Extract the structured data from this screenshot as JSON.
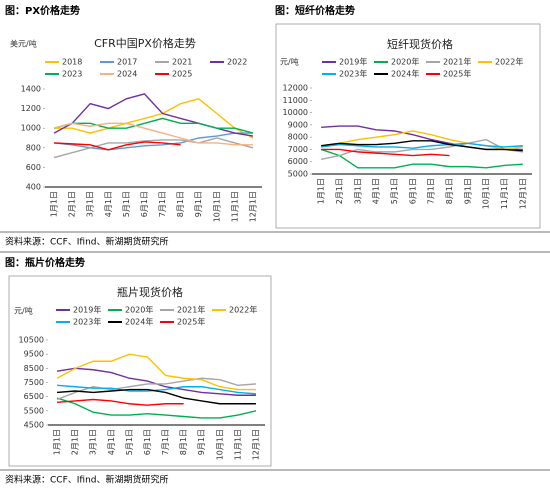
{
  "captions": [
    "图：PX价格走势",
    "图：短纤价格走势",
    "图：瓶片价格走势"
  ],
  "sources": [
    "资料来源：CCF、Ifind、新湖期货研究所",
    "资料来源：CCF、Ifind、新湖期货研究所"
  ],
  "chart_data": [
    {
      "type": "line",
      "title": "CFR中国PX价格走势",
      "y_label": "美元/吨",
      "categories": [
        "1月1日",
        "2月1日",
        "3月1日",
        "4月1日",
        "5月1日",
        "6月1日",
        "7月1日",
        "8月1日",
        "9月1日",
        "10月1日",
        "11月1日",
        "12月1日"
      ],
      "ylim": [
        400,
        1400
      ],
      "yticks": [
        400,
        600,
        800,
        1000,
        1200,
        1400
      ],
      "series": [
        {
          "name": "2018",
          "color": "#ffc000",
          "values": [
            1000,
            1000,
            950,
            1000,
            1050,
            1100,
            1150,
            1250,
            1300,
            1150,
            1000,
            900
          ]
        },
        {
          "name": "2017",
          "color": "#5b9bd5",
          "values": [
            850,
            830,
            800,
            780,
            800,
            820,
            830,
            850,
            900,
            920,
            950,
            950
          ]
        },
        {
          "name": "2021",
          "color": "#a6a6a6",
          "values": [
            700,
            750,
            800,
            850,
            850,
            870,
            880,
            880,
            850,
            900,
            850,
            800
          ]
        },
        {
          "name": "2022",
          "color": "#7030a0",
          "values": [
            950,
            1050,
            1250,
            1200,
            1300,
            1350,
            1150,
            1100,
            1050,
            1000,
            950,
            920
          ]
        },
        {
          "name": "2023",
          "color": "#00b050",
          "values": [
            1000,
            1050,
            1050,
            1000,
            1000,
            1050,
            1100,
            1050,
            1050,
            1000,
            1000,
            950
          ]
        },
        {
          "name": "2024",
          "color": "#f4b183",
          "values": [
            1000,
            1050,
            1020,
            1050,
            1050,
            1000,
            950,
            900,
            850,
            850,
            830,
            830
          ]
        },
        {
          "name": "2025",
          "color": "#ff0000",
          "values": [
            850,
            840,
            830,
            780,
            830,
            860,
            850,
            830,
            null,
            null,
            null,
            null
          ]
        }
      ]
    },
    {
      "type": "line",
      "title": "短纤现货价格",
      "y_label": "元/吨",
      "categories": [
        "1月1日",
        "2月1日",
        "3月1日",
        "4月1日",
        "5月1日",
        "6月1日",
        "7月1日",
        "8月1日",
        "9月1日",
        "10月1日",
        "11月1日",
        "12月1日"
      ],
      "ylim": [
        5000,
        12000
      ],
      "yticks": [
        5000,
        6000,
        7000,
        8000,
        9000,
        10000,
        11000,
        12000
      ],
      "series": [
        {
          "name": "2019年",
          "color": "#7030a0",
          "values": [
            8800,
            8900,
            8900,
            8600,
            8500,
            8200,
            7800,
            7500,
            7200,
            7000,
            7000,
            7000
          ]
        },
        {
          "name": "2020年",
          "color": "#00b050",
          "values": [
            7000,
            6500,
            5500,
            5500,
            5500,
            5800,
            5800,
            5600,
            5600,
            5500,
            5700,
            5800
          ]
        },
        {
          "name": "2021年",
          "color": "#a6a6a6",
          "values": [
            6200,
            6500,
            7000,
            6800,
            6800,
            7000,
            7000,
            7200,
            7500,
            7800,
            7000,
            6800
          ]
        },
        {
          "name": "2022年",
          "color": "#ffc000",
          "values": [
            7300,
            7500,
            7800,
            8000,
            8200,
            8500,
            8200,
            7800,
            7500,
            7300,
            7000,
            7200
          ]
        },
        {
          "name": "2023年",
          "color": "#00b0f0",
          "values": [
            7200,
            7400,
            7300,
            7200,
            7200,
            7100,
            7300,
            7400,
            7500,
            7300,
            7200,
            7300
          ]
        },
        {
          "name": "2024年",
          "color": "#000000",
          "values": [
            7300,
            7500,
            7400,
            7400,
            7500,
            7700,
            7700,
            7400,
            7200,
            7000,
            7000,
            6900
          ]
        },
        {
          "name": "2025年",
          "color": "#ff0000",
          "values": [
            7000,
            7000,
            6800,
            6700,
            6600,
            6500,
            6600,
            6500,
            null,
            null,
            null,
            null
          ]
        }
      ]
    },
    {
      "type": "line",
      "title": "瓶片现货价格",
      "y_label": "元/吨",
      "categories": [
        "1月1日",
        "2月1日",
        "3月1日",
        "4月1日",
        "5月1日",
        "6月1日",
        "7月1日",
        "8月1日",
        "9月1日",
        "10月1日",
        "11月1日",
        "12月1日"
      ],
      "ylim": [
        4500,
        10500
      ],
      "yticks": [
        4500,
        5500,
        6500,
        7500,
        8500,
        9500,
        10500
      ],
      "series": [
        {
          "name": "2019年",
          "color": "#7030a0",
          "values": [
            8300,
            8500,
            8400,
            8200,
            7800,
            7600,
            7200,
            7000,
            6800,
            6700,
            6600,
            6600
          ]
        },
        {
          "name": "2020年",
          "color": "#00b050",
          "values": [
            6400,
            6000,
            5400,
            5200,
            5200,
            5300,
            5200,
            5100,
            5000,
            5000,
            5200,
            5500
          ]
        },
        {
          "name": "2021年",
          "color": "#a6a6a6",
          "values": [
            6300,
            6800,
            7200,
            7000,
            7200,
            7400,
            7400,
            7600,
            7800,
            7700,
            7300,
            7400
          ]
        },
        {
          "name": "2022年",
          "color": "#ffc000",
          "values": [
            7800,
            8500,
            9000,
            9000,
            9500,
            9300,
            8000,
            7800,
            7700,
            7200,
            7000,
            7000
          ]
        },
        {
          "name": "2023年",
          "color": "#00b0f0",
          "values": [
            7300,
            7200,
            7100,
            7100,
            6900,
            6900,
            7000,
            7200,
            7200,
            7000,
            6800,
            6700
          ]
        },
        {
          "name": "2024年",
          "color": "#000000",
          "values": [
            6800,
            6900,
            6800,
            6900,
            7000,
            7000,
            6800,
            6400,
            6200,
            6000,
            6000,
            6000
          ]
        },
        {
          "name": "2025年",
          "color": "#ff0000",
          "values": [
            6100,
            6200,
            6300,
            6200,
            6000,
            5900,
            6000,
            6000,
            null,
            null,
            null,
            null
          ]
        }
      ]
    }
  ]
}
